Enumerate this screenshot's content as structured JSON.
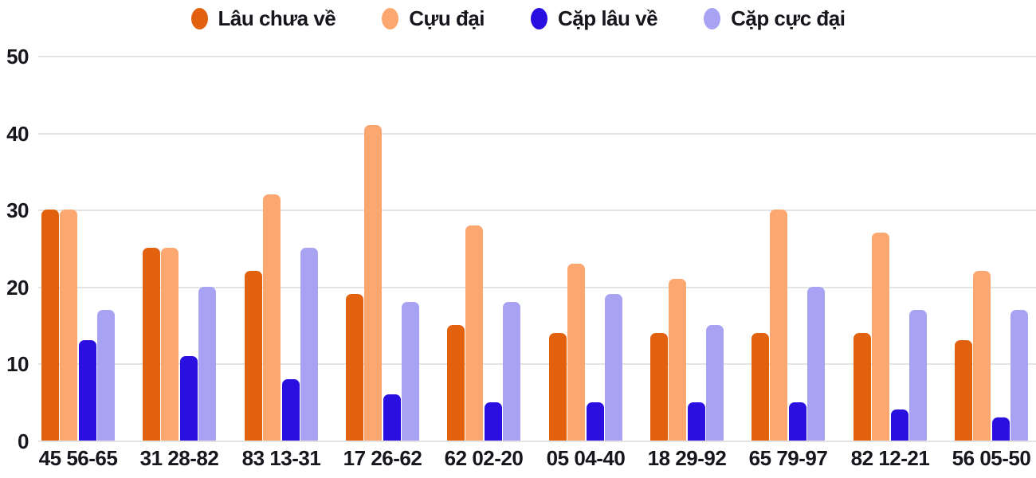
{
  "colors": {
    "background": "#ffffff",
    "text": "#15171c",
    "gridline": "#e4e4e4"
  },
  "chart_data": {
    "type": "bar",
    "title": "",
    "xlabel": "",
    "ylabel": "",
    "ylim": [
      0,
      50
    ],
    "yticks": [
      0,
      10,
      20,
      30,
      40,
      50
    ],
    "grid": true,
    "legend_position": "top-center",
    "categories": [
      "45 56-65",
      "31 28-82",
      "83 13-31",
      "17 26-62",
      "62 02-20",
      "05 04-40",
      "18 29-92",
      "65 79-97",
      "82 12-21",
      "56 05-50"
    ],
    "series": [
      {
        "name": "Lâu chưa về",
        "color": "#e2610f",
        "values": [
          30,
          25,
          22,
          19,
          15,
          14,
          14,
          14,
          14,
          13
        ]
      },
      {
        "name": "Cựu đại",
        "color": "#fca76f",
        "values": [
          30,
          25,
          32,
          41,
          28,
          23,
          21,
          30,
          27,
          22
        ]
      },
      {
        "name": "Cặp lâu về",
        "color": "#2a10e0",
        "values": [
          13,
          11,
          8,
          6,
          5,
          5,
          5,
          5,
          4,
          3
        ]
      },
      {
        "name": "Cặp cực đại",
        "color": "#a8a2f2",
        "values": [
          17,
          20,
          25,
          18,
          18,
          19,
          15,
          20,
          17,
          17
        ]
      }
    ]
  }
}
